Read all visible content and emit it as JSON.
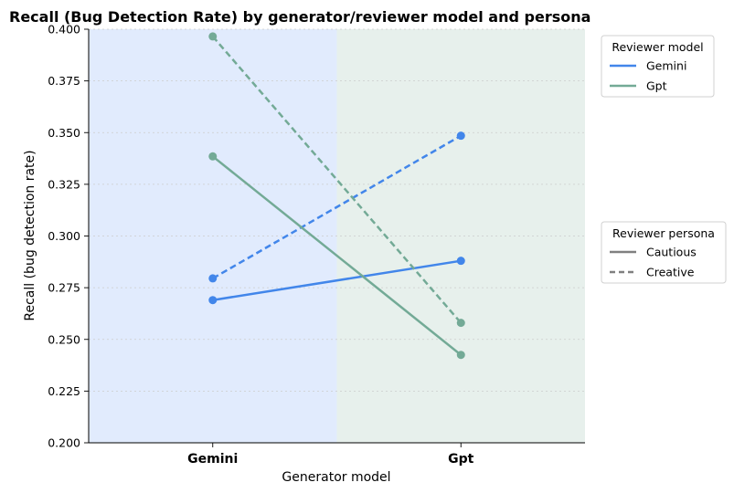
{
  "chart_data": {
    "type": "line",
    "title": "Recall (Bug Detection Rate) by generator/reviewer model and persona",
    "xlabel": "Generator model",
    "ylabel": "Recall (bug detection rate)",
    "categories": [
      "Gemini",
      "Gpt"
    ],
    "ylim": [
      0.2,
      0.4
    ],
    "yticks": [
      "0.200",
      "0.225",
      "0.250",
      "0.275",
      "0.300",
      "0.325",
      "0.350",
      "0.375",
      "0.400"
    ],
    "grid": true,
    "background_bands": [
      {
        "category": "Gemini",
        "color": "#e1ebfd"
      },
      {
        "category": "Gpt",
        "color": "#e7f0ec"
      }
    ],
    "series": [
      {
        "reviewer_model": "Gemini",
        "persona": "Cautious",
        "color": "#4286ea",
        "dash": "solid",
        "values": [
          0.269,
          0.288
        ]
      },
      {
        "reviewer_model": "Gemini",
        "persona": "Creative",
        "color": "#4286ea",
        "dash": "dashed",
        "values": [
          0.2795,
          0.3485
        ]
      },
      {
        "reviewer_model": "Gpt",
        "persona": "Cautious",
        "color": "#73aa96",
        "dash": "solid",
        "values": [
          0.3385,
          0.2425
        ]
      },
      {
        "reviewer_model": "Gpt",
        "persona": "Creative",
        "color": "#73aa96",
        "dash": "dashed",
        "values": [
          0.3965,
          0.258
        ]
      }
    ],
    "legends": [
      {
        "title": "Reviewer model",
        "placement": "top-right-outside",
        "items": [
          {
            "label": "Gemini",
            "color": "#4286ea",
            "dash": "solid"
          },
          {
            "label": "Gpt",
            "color": "#73aa96",
            "dash": "solid"
          }
        ]
      },
      {
        "title": "Reviewer persona",
        "placement": "center-right-outside",
        "items": [
          {
            "label": "Cautious",
            "color": "#808080",
            "dash": "solid"
          },
          {
            "label": "Creative",
            "color": "#808080",
            "dash": "dashed"
          }
        ]
      }
    ]
  }
}
